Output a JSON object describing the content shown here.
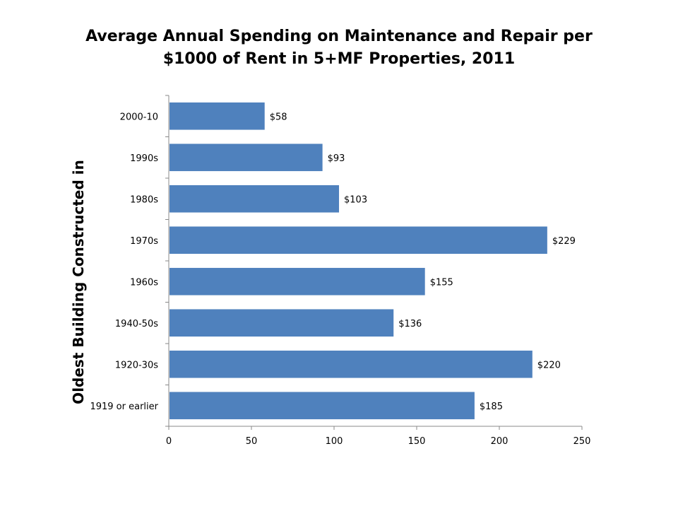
{
  "chart_data": {
    "type": "bar",
    "orientation": "horizontal",
    "title_lines": [
      "Average Annual Spending on Maintenance and Repair per",
      "$1000 of Rent in 5+MF Properties, 2011"
    ],
    "ylabel": "Oldest Building Constructed in",
    "xlabel": "",
    "categories": [
      "2000-10",
      "1990s",
      "1980s",
      "1970s",
      "1960s",
      "1940-50s",
      "1920-30s",
      "1919 or earlier"
    ],
    "values": [
      58,
      93,
      103,
      229,
      155,
      136,
      220,
      185
    ],
    "data_labels": [
      "$58",
      "$93",
      "$103",
      "$229",
      "$155",
      "$136",
      "$220",
      "$185"
    ],
    "xlim": [
      0,
      250
    ],
    "xticks": [
      0,
      50,
      100,
      150,
      200,
      250
    ],
    "grid": false,
    "legend": "none",
    "bar_color": "#4F81BD"
  }
}
